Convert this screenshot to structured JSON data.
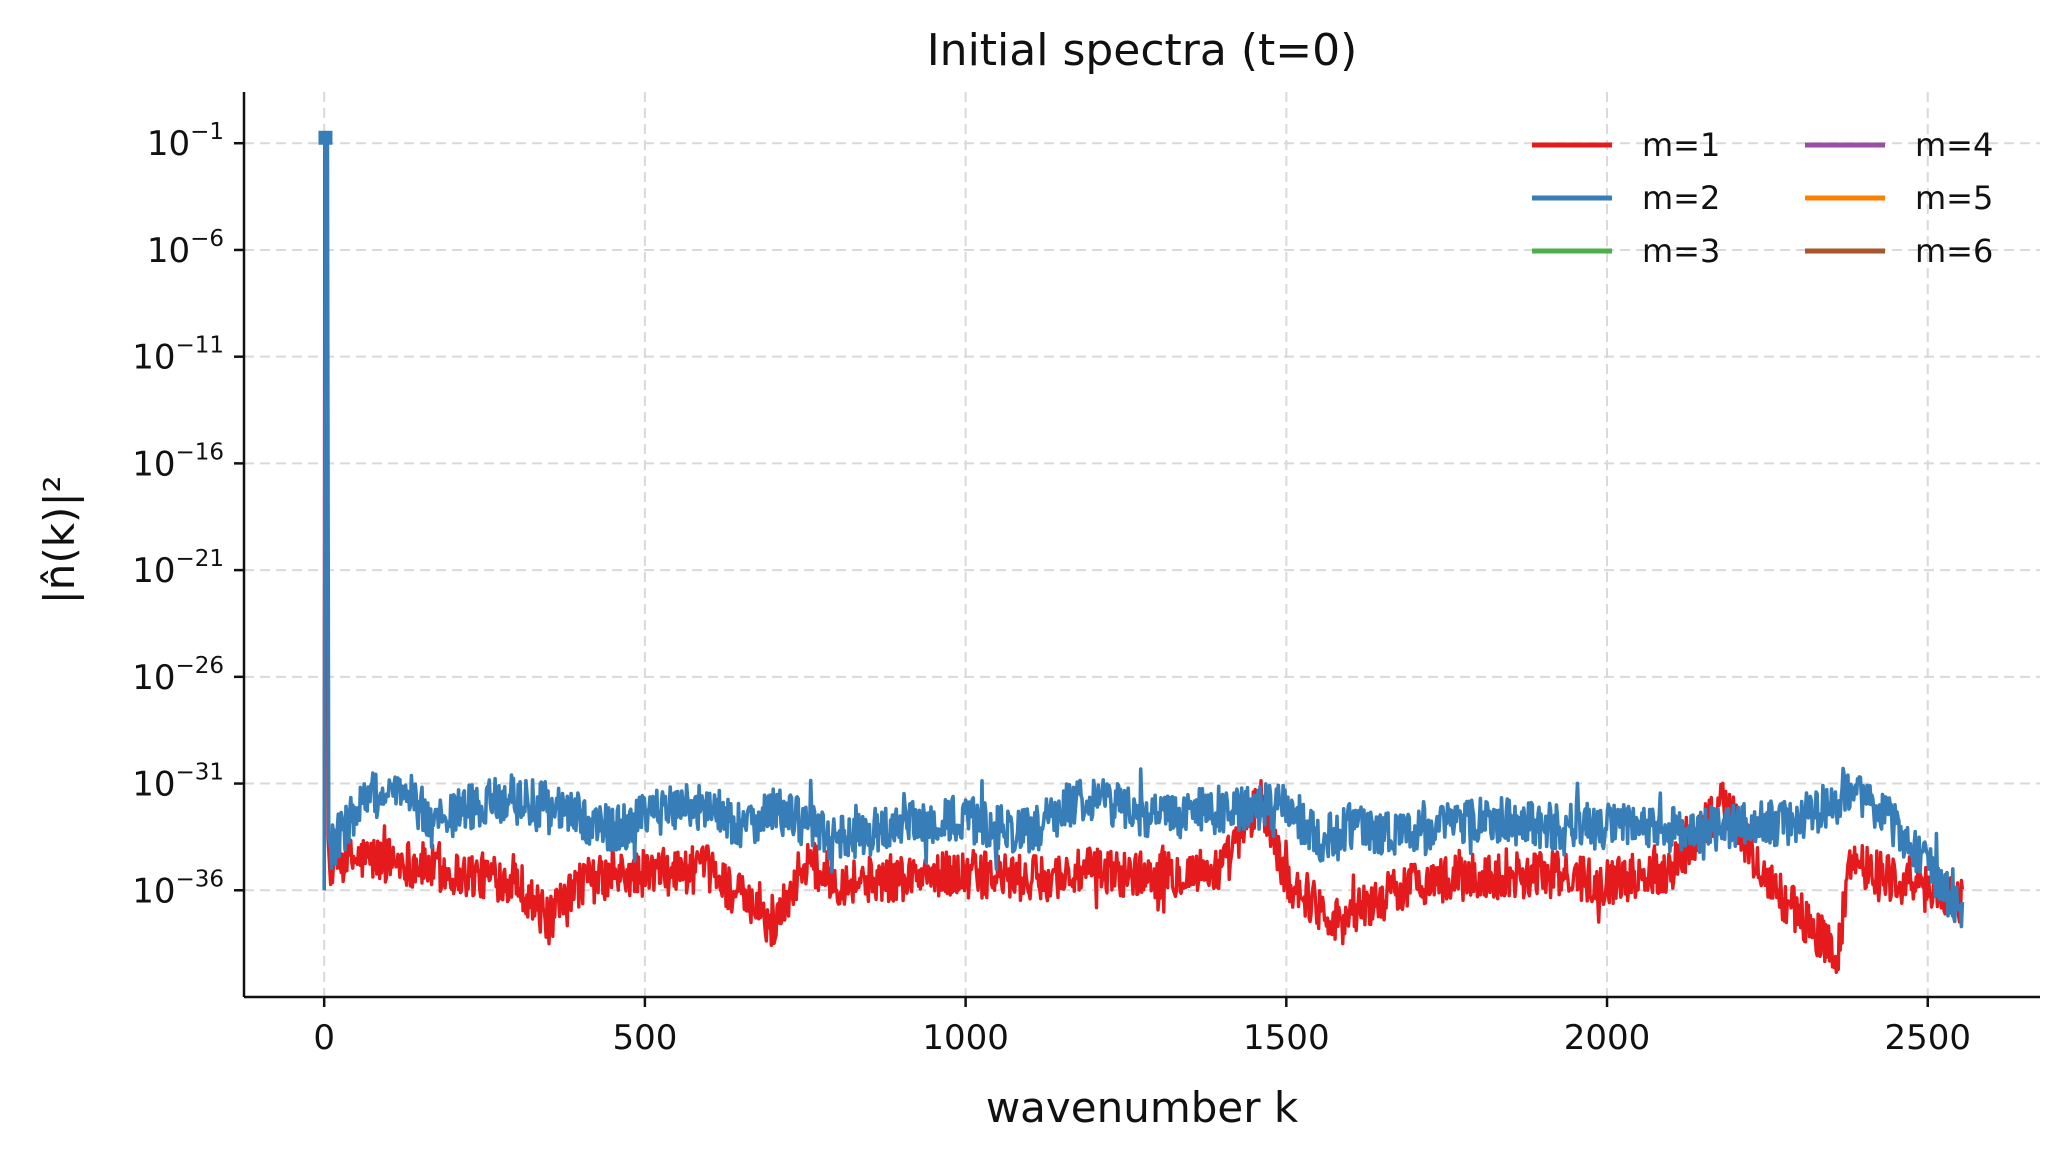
{
  "chart_data": {
    "type": "line",
    "title": "Initial spectra (t=0)",
    "xlabel": "wavenumber k",
    "ylabel": "|n̂(k)|²",
    "yscale": "log",
    "grid": true,
    "legend_position": "top-right",
    "legend_columns": 2,
    "xlim": [
      -125,
      2675
    ],
    "ylim_exponent": [
      -41,
      1.4
    ],
    "x_ticks": [
      0,
      500,
      1000,
      1500,
      2000,
      2500
    ],
    "x_tick_labels": [
      "0",
      "500",
      "1000",
      "1500",
      "2000",
      "2500"
    ],
    "y_ticks_exponent": [
      -1,
      -6,
      -11,
      -16,
      -21,
      -26,
      -31,
      -36
    ],
    "y_tick_labels": [
      {
        "base": "10",
        "exp": "−1"
      },
      {
        "base": "10",
        "exp": "−6"
      },
      {
        "base": "10",
        "exp": "−11"
      },
      {
        "base": "10",
        "exp": "−16"
      },
      {
        "base": "10",
        "exp": "−21"
      },
      {
        "base": "10",
        "exp": "−26"
      },
      {
        "base": "10",
        "exp": "−31"
      },
      {
        "base": "10",
        "exp": "−36"
      }
    ],
    "series": [
      {
        "name": "m=1",
        "color": "#e41a1c",
        "peak": {
          "k": 1,
          "y": 0.25
        },
        "noise_floor_log10": [
          -35,
          -34
        ],
        "x": [
          0,
          10,
          60,
          120,
          200,
          300,
          350,
          400,
          500,
          600,
          700,
          750,
          800,
          900,
          1000,
          1100,
          1200,
          1300,
          1400,
          1460,
          1500,
          1580,
          1700,
          1800,
          1900,
          2000,
          2100,
          2180,
          2250,
          2360,
          2380,
          2450,
          2555
        ],
        "y_log10": [
          -36,
          -34.8,
          -34.5,
          -34.6,
          -35.2,
          -35.5,
          -37.5,
          -35.6,
          -35.2,
          -35.0,
          -37.7,
          -34.6,
          -35.6,
          -35.4,
          -35.2,
          -35.5,
          -35.1,
          -35.3,
          -35.0,
          -31.8,
          -35.5,
          -37.4,
          -35.6,
          -35.4,
          -35.2,
          -35.6,
          -35.0,
          -31.8,
          -35.6,
          -39.0,
          -34.5,
          -35.5,
          -36.5
        ]
      },
      {
        "name": "m=2",
        "color": "#377eb8",
        "peak": {
          "k": 2,
          "y": 0.18
        },
        "noise_floor_log10": [
          -35,
          -33.5
        ],
        "x": [
          0,
          10,
          70,
          90,
          140,
          160,
          220,
          290,
          300,
          350,
          450,
          550,
          600,
          650,
          700,
          800,
          900,
          1000,
          1100,
          1180,
          1200,
          1300,
          1400,
          1500,
          1550,
          1600,
          1700,
          1800,
          1900,
          2000,
          2100,
          2200,
          2300,
          2370,
          2390,
          2450,
          2555
        ],
        "y_log10": [
          -36,
          -34,
          -31.5,
          -31.6,
          -31.6,
          -33,
          -32.2,
          -31.6,
          -31.8,
          -32.0,
          -33.2,
          -32.0,
          -32.1,
          -33.0,
          -32.2,
          -33.6,
          -33.0,
          -32.7,
          -33.3,
          -31.6,
          -31.6,
          -32.6,
          -32.2,
          -32.0,
          -33.6,
          -33.0,
          -33.4,
          -32.5,
          -33.0,
          -33.0,
          -33.2,
          -33.1,
          -32.7,
          -31.6,
          -31.6,
          -33.0,
          -37.0
        ]
      },
      {
        "name": "m=3",
        "color": "#4daf4a",
        "x": [],
        "y_log10": []
      },
      {
        "name": "m=4",
        "color": "#984ea3",
        "x": [],
        "y_log10": []
      },
      {
        "name": "m=5",
        "color": "#ff7f00",
        "x": [],
        "y_log10": []
      },
      {
        "name": "m=6",
        "color": "#a65628",
        "x": [],
        "y_log10": []
      }
    ]
  }
}
